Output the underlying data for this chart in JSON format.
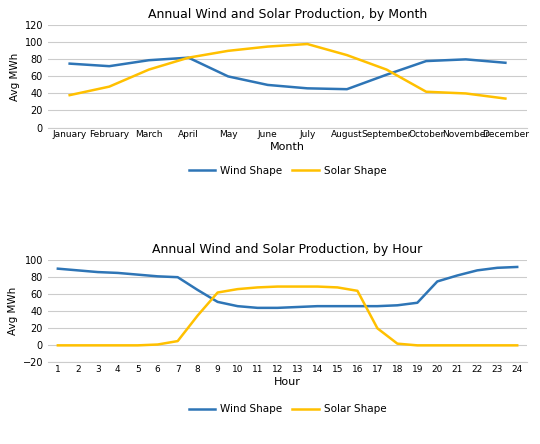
{
  "title1": "Annual Wind and Solar Production, by Month",
  "title2": "Annual Wind and Solar Production, by Hour",
  "xlabel1": "Month",
  "xlabel2": "Hour",
  "ylabel": "Avg MWh",
  "months": [
    "January",
    "February",
    "March",
    "April",
    "May",
    "June",
    "July",
    "August",
    "September",
    "October",
    "November",
    "December"
  ],
  "wind_month": [
    75,
    72,
    79,
    82,
    60,
    50,
    46,
    45,
    62,
    78,
    80,
    76
  ],
  "solar_month": [
    38,
    48,
    68,
    82,
    90,
    95,
    98,
    85,
    68,
    42,
    40,
    34
  ],
  "hours": [
    1,
    2,
    3,
    4,
    5,
    6,
    7,
    8,
    9,
    10,
    11,
    12,
    13,
    14,
    15,
    16,
    17,
    18,
    19,
    20,
    21,
    22,
    23,
    24
  ],
  "wind_hour": [
    90,
    88,
    86,
    85,
    83,
    81,
    80,
    65,
    51,
    46,
    44,
    44,
    45,
    46,
    46,
    46,
    46,
    47,
    50,
    75,
    82,
    88,
    91,
    92
  ],
  "solar_hour": [
    0,
    0,
    0,
    0,
    0,
    1,
    5,
    35,
    62,
    66,
    68,
    69,
    69,
    69,
    68,
    64,
    20,
    2,
    0,
    0,
    0,
    0,
    0,
    0
  ],
  "wind_color": "#2E75B6",
  "solar_color": "#FFC000",
  "background_color": "#FFFFFF",
  "grid_color": "#CCCCCC",
  "ylim1": [
    0,
    120
  ],
  "ylim2": [
    -20,
    100
  ],
  "yticks1": [
    0,
    20,
    40,
    60,
    80,
    100,
    120
  ],
  "yticks2": [
    -20,
    0,
    20,
    40,
    60,
    80,
    100
  ],
  "legend_wind": "Wind Shape",
  "legend_solar": "Solar Shape",
  "linewidth": 1.8
}
